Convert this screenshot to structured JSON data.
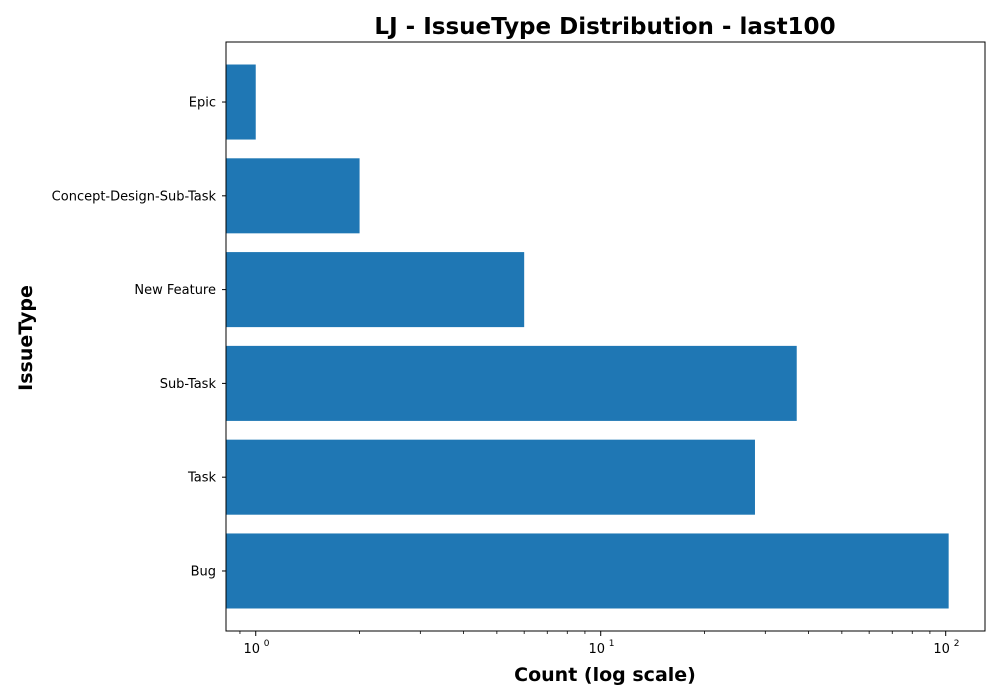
{
  "chart_data": {
    "type": "bar",
    "orientation": "horizontal",
    "title": "LJ - IssueType Distribution - last100",
    "xlabel": "Count (log scale)",
    "ylabel": "IssueType",
    "xscale": "log",
    "xlim": [
      0.82,
      130
    ],
    "categories": [
      "Bug",
      "Task",
      "Sub-Task",
      "New Feature",
      "Concept-Design-Sub-Task",
      "Epic"
    ],
    "values": [
      102,
      28,
      37,
      6,
      2,
      1
    ],
    "x_ticks": [
      {
        "value": 1,
        "base": "10",
        "exponent": "0"
      },
      {
        "value": 10,
        "base": "10",
        "exponent": "1"
      },
      {
        "value": 100,
        "base": "10",
        "exponent": "2"
      }
    ],
    "bar_color": "#1f77b4",
    "grid": false,
    "legend": false
  }
}
